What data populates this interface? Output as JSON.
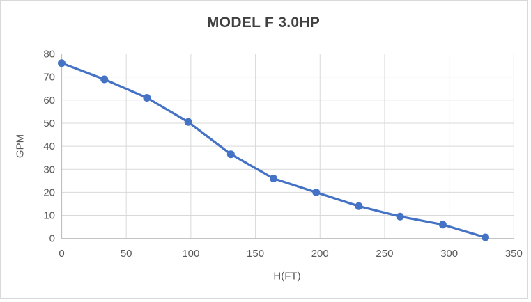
{
  "chart_data": {
    "type": "line",
    "title": "MODEL F 3.0HP",
    "xlabel": "H(FT)",
    "ylabel": "GPM",
    "x": [
      0,
      33,
      66,
      98,
      131,
      164,
      197,
      230,
      262,
      295,
      328
    ],
    "y": [
      76,
      69,
      61,
      50.5,
      36.5,
      26,
      20,
      14,
      9.5,
      6,
      0.5
    ],
    "xlim": [
      0,
      350
    ],
    "ylim": [
      0,
      80
    ],
    "xtick_step": 50,
    "ytick_step": 10,
    "grid": true,
    "legend": "none",
    "series_name": "MODEL F 3.0HP",
    "colors": {
      "series": "#4472C4",
      "gridline": "#D9D9D9",
      "axis_line": "#BFBFBF",
      "tick_label": "#595959",
      "title": "#404040",
      "background": "#FFFFFF",
      "border": "#D9D9D9"
    }
  }
}
